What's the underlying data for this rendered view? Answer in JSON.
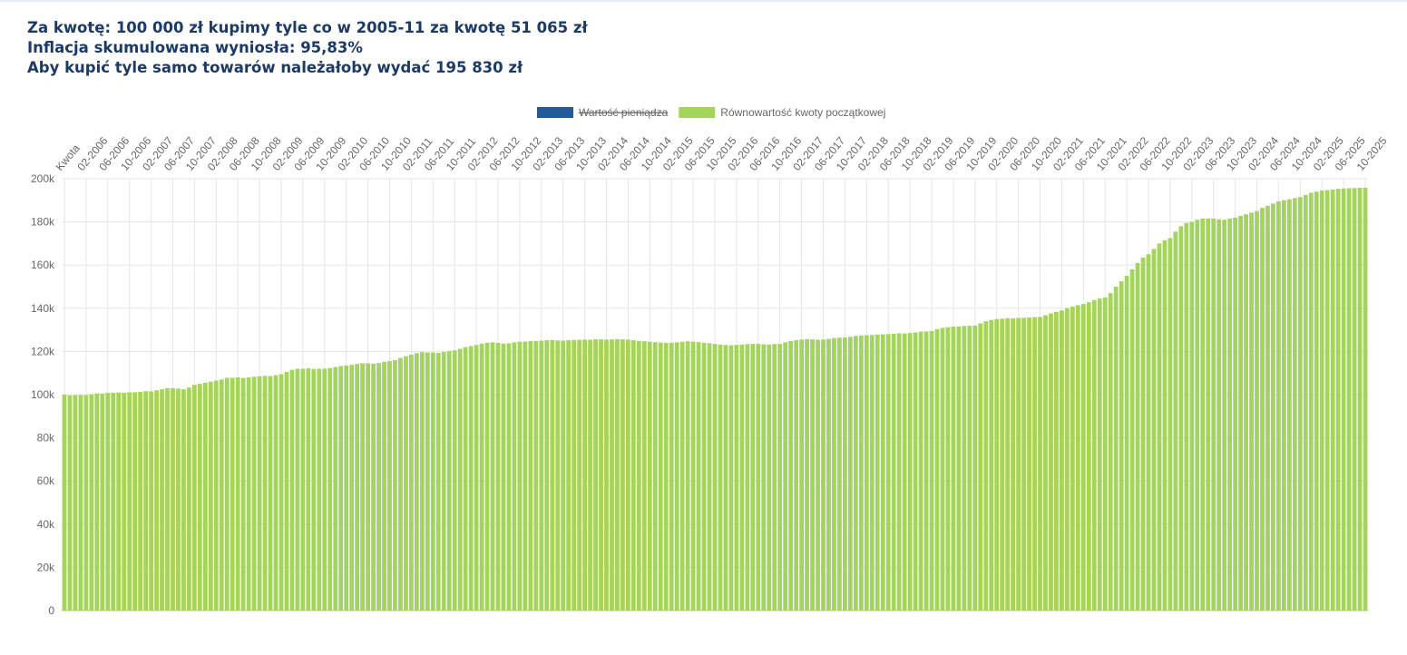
{
  "header": {
    "lines": [
      "Za kwotę: 100 000 zł kupimy tyle co w 2005-11 za kwotę 51 065 zł",
      "Inflacja skumulowana wyniosła: 95,83%",
      "Aby kupić tyle samo towarów należałoby wydać 195 830 zł"
    ]
  },
  "chart_data": {
    "type": "bar",
    "categories": [
      "Kwota",
      null,
      null,
      null,
      "02-2006",
      null,
      null,
      null,
      "06-2006",
      null,
      null,
      null,
      "10-2006",
      null,
      null,
      null,
      "02-2007",
      null,
      null,
      null,
      "06-2007",
      null,
      null,
      null,
      "10-2007",
      null,
      null,
      null,
      "02-2008",
      null,
      null,
      null,
      "06-2008",
      null,
      null,
      null,
      "10-2008",
      null,
      null,
      null,
      "02-2009",
      null,
      null,
      null,
      "06-2009",
      null,
      null,
      null,
      "10-2009",
      null,
      null,
      null,
      "02-2010",
      null,
      null,
      null,
      "06-2010",
      null,
      null,
      null,
      "10-2010",
      null,
      null,
      null,
      "02-2011",
      null,
      null,
      null,
      "06-2011",
      null,
      null,
      null,
      "10-2011",
      null,
      null,
      null,
      "02-2012",
      null,
      null,
      null,
      "06-2012",
      null,
      null,
      null,
      "10-2012",
      null,
      null,
      null,
      "02-2013",
      null,
      null,
      null,
      "06-2013",
      null,
      null,
      null,
      "10-2013",
      null,
      null,
      null,
      "02-2014",
      null,
      null,
      null,
      "06-2014",
      null,
      null,
      null,
      "10-2014",
      null,
      null,
      null,
      "02-2015",
      null,
      null,
      null,
      "06-2015",
      null,
      null,
      null,
      "10-2015",
      null,
      null,
      null,
      "02-2016",
      null,
      null,
      null,
      "06-2016",
      null,
      null,
      null,
      "10-2016",
      null,
      null,
      null,
      "02-2017",
      null,
      null,
      null,
      "06-2017",
      null,
      null,
      null,
      "10-2017",
      null,
      null,
      null,
      "02-2018",
      null,
      null,
      null,
      "06-2018",
      null,
      null,
      null,
      "10-2018",
      null,
      null,
      null,
      "02-2019",
      null,
      null,
      null,
      "06-2019",
      null,
      null,
      null,
      "10-2019",
      null,
      null,
      null,
      "02-2020",
      null,
      null,
      null,
      "06-2020",
      null,
      null,
      null,
      "10-2020",
      null,
      null,
      null,
      "02-2021",
      null,
      null,
      null,
      "06-2021",
      null,
      null,
      null,
      "10-2021",
      null,
      null,
      null,
      "02-2022",
      null,
      null,
      null,
      "06-2022",
      null,
      null,
      null,
      "10-2022",
      null,
      null,
      null,
      "02-2023",
      null,
      null,
      null,
      "06-2023",
      null,
      null,
      null,
      "10-2023",
      null,
      null,
      null,
      "02-2024",
      null,
      null,
      null,
      "06-2024",
      null,
      null,
      null,
      "10-2024",
      null,
      null,
      null,
      "02-2025",
      null,
      null,
      null,
      "06-2025",
      null,
      null,
      null,
      "10-2025"
    ],
    "series": [
      {
        "name": "Wartość pieniądza",
        "color": "#1f5c99",
        "hidden": true
      },
      {
        "name": "Równowartość kwoty początkowej",
        "color": "#a4d45c",
        "values": [
          100000,
          99700,
          99800,
          99800,
          99800,
          100200,
          100600,
          100500,
          100800,
          100900,
          101000,
          100900,
          101000,
          101100,
          101300,
          101600,
          101500,
          102000,
          102500,
          103000,
          103000,
          102800,
          102500,
          103300,
          104500,
          105000,
          105500,
          106000,
          106500,
          107000,
          107800,
          107800,
          108000,
          107700,
          108000,
          108300,
          108500,
          108700,
          108600,
          109000,
          109500,
          110500,
          111500,
          112000,
          112000,
          112200,
          111900,
          112000,
          112000,
          112300,
          112800,
          113200,
          113500,
          113800,
          114200,
          114500,
          114500,
          114300,
          114600,
          115200,
          115500,
          116000,
          117000,
          117800,
          118500,
          119200,
          119700,
          119500,
          119500,
          119300,
          119800,
          120200,
          120500,
          121200,
          122000,
          122500,
          123000,
          123600,
          124000,
          124200,
          124000,
          123600,
          123800,
          124200,
          124500,
          124600,
          124800,
          124900,
          125000,
          125200,
          125300,
          125100,
          125000,
          125200,
          125300,
          125400,
          125500,
          125400,
          125600,
          125600,
          125500,
          125600,
          125700,
          125600,
          125500,
          125200,
          124900,
          124700,
          124500,
          124300,
          124100,
          124000,
          124000,
          124200,
          124500,
          124700,
          124500,
          124300,
          124000,
          123800,
          123500,
          123200,
          123000,
          122900,
          123000,
          123200,
          123400,
          123500,
          123500,
          123300,
          123200,
          123400,
          123500,
          124200,
          124800,
          125200,
          125500,
          125700,
          125600,
          125400,
          125500,
          125800,
          126200,
          126400,
          126500,
          126800,
          127200,
          127400,
          127500,
          127600,
          127800,
          127900,
          128000,
          128200,
          128400,
          128300,
          128500,
          128800,
          129200,
          129300,
          129500,
          130300,
          130900,
          131200,
          131500,
          131600,
          131800,
          131900,
          132000,
          133000,
          134000,
          134600,
          135000,
          135200,
          135400,
          135300,
          135500,
          135600,
          135700,
          135900,
          136000,
          136800,
          137600,
          138300,
          139000,
          140000,
          140800,
          141400,
          142000,
          142800,
          143800,
          144500,
          145000,
          147000,
          150000,
          152500,
          155000,
          158000,
          161000,
          163500,
          165000,
          167500,
          170000,
          171500,
          172500,
          175500,
          178000,
          179500,
          180000,
          181000,
          181500,
          181500,
          181500,
          181200,
          181000,
          181500,
          182000,
          182800,
          183500,
          184300,
          185000,
          186500,
          187500,
          188500,
          189500,
          190000,
          190500,
          191000,
          191500,
          192500,
          193500,
          194000,
          194500,
          194700,
          195000,
          195300,
          195500,
          195600,
          195700,
          195800,
          195830
        ]
      }
    ],
    "ylim": [
      0,
      200000
    ],
    "yticks": [
      0,
      {
        "value": 20000,
        "label": "20k"
      },
      {
        "value": 40000,
        "label": "40k"
      },
      {
        "value": 60000,
        "label": "60k"
      },
      {
        "value": 80000,
        "label": "80k"
      },
      {
        "value": 100000,
        "label": "100k"
      },
      {
        "value": 120000,
        "label": "120k"
      },
      {
        "value": 140000,
        "label": "140k"
      },
      {
        "value": 160000,
        "label": "160k"
      },
      {
        "value": 180000,
        "label": "180k"
      },
      {
        "value": 200000,
        "label": "200k"
      }
    ],
    "grid": true,
    "legend": "top"
  }
}
